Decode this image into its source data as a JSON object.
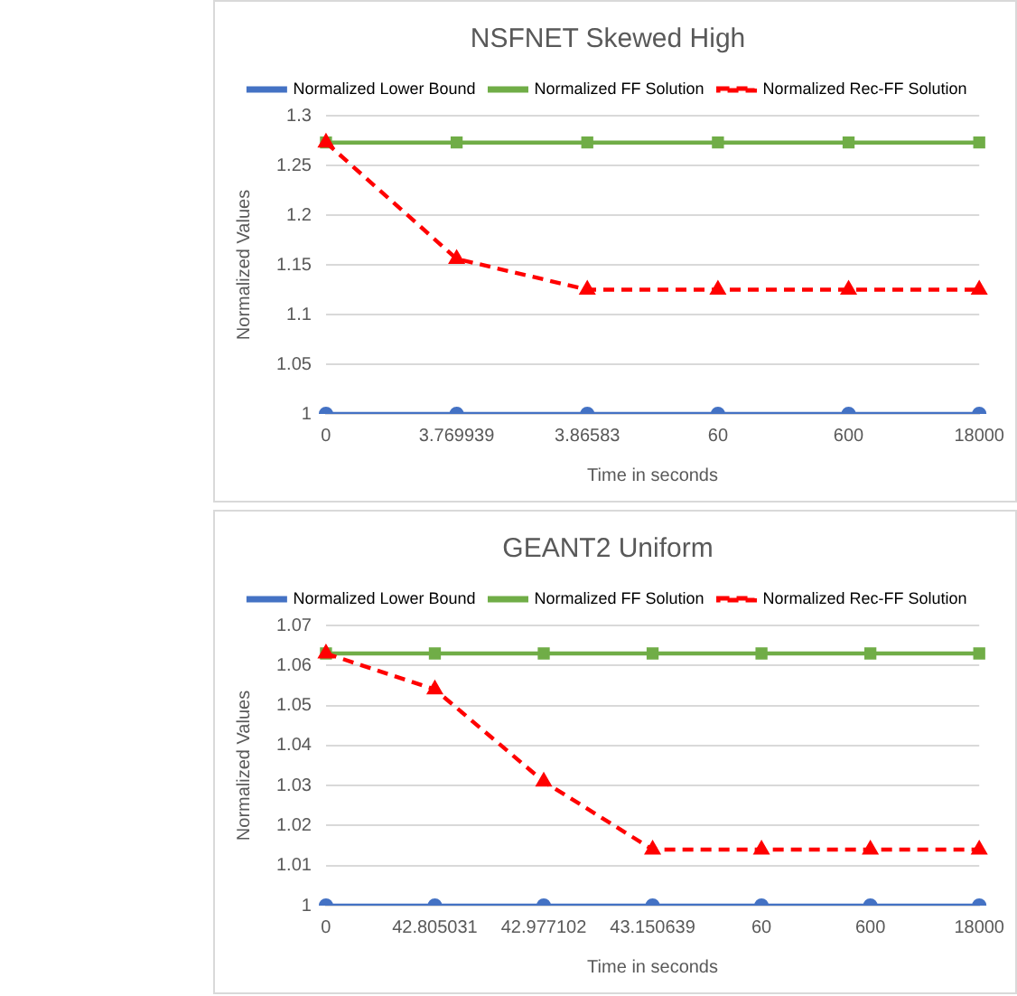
{
  "chart_data": [
    {
      "type": "line",
      "title": "NSFNET Skewed High",
      "xlabel": "Time in seconds",
      "ylabel": "Normalized Values",
      "categories": [
        "0",
        "3.769939",
        "3.86583",
        "60",
        "600",
        "18000"
      ],
      "series": [
        {
          "name": "Normalized Lower Bound",
          "color": "#4472c4",
          "marker": "circle",
          "line_style": "solid",
          "values": [
            1,
            1,
            1,
            1,
            1,
            1
          ]
        },
        {
          "name": "Normalized FF Solution",
          "color": "#70ad47",
          "marker": "square",
          "line_style": "solid",
          "values": [
            1.273,
            1.273,
            1.273,
            1.273,
            1.273,
            1.273
          ]
        },
        {
          "name": "Normalized Rec-FF Solution",
          "color": "#ff0000",
          "marker": "triangle",
          "line_style": "dashed",
          "values": [
            1.273,
            1.156,
            1.125,
            1.125,
            1.125,
            1.125
          ]
        }
      ],
      "ylim": [
        1,
        1.3
      ],
      "yticks": [
        1,
        1.05,
        1.1,
        1.15,
        1.2,
        1.25,
        1.3
      ],
      "grid": "y",
      "legend": "top"
    },
    {
      "type": "line",
      "title": "GEANT2 Uniform",
      "xlabel": "Time in seconds",
      "ylabel": "Normalized Values",
      "categories": [
        "0",
        "42.805031",
        "42.977102",
        "43.150639",
        "60",
        "600",
        "18000"
      ],
      "series": [
        {
          "name": "Normalized Lower Bound",
          "color": "#4472c4",
          "marker": "circle",
          "line_style": "solid",
          "values": [
            1,
            1,
            1,
            1,
            1,
            1,
            1
          ]
        },
        {
          "name": "Normalized FF Solution",
          "color": "#70ad47",
          "marker": "square",
          "line_style": "solid",
          "values": [
            1.063,
            1.063,
            1.063,
            1.063,
            1.063,
            1.063,
            1.063
          ]
        },
        {
          "name": "Normalized Rec-FF Solution",
          "color": "#ff0000",
          "marker": "triangle",
          "line_style": "dashed",
          "values": [
            1.063,
            1.054,
            1.031,
            1.014,
            1.014,
            1.014,
            1.014
          ]
        }
      ],
      "ylim": [
        1,
        1.07
      ],
      "yticks": [
        1,
        1.01,
        1.02,
        1.03,
        1.04,
        1.05,
        1.06,
        1.07
      ],
      "grid": "y",
      "legend": "top"
    }
  ]
}
